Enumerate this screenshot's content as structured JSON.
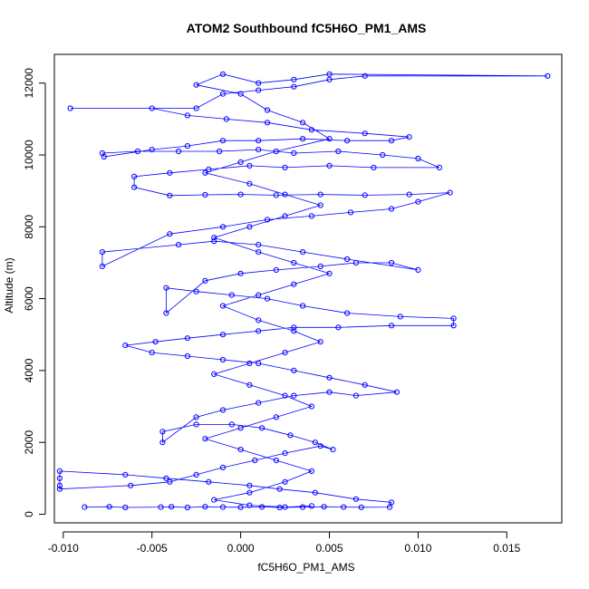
{
  "chart_data": {
    "type": "scatter",
    "title": "ATOM2 Southbound fC5H6O_PM1_AMS",
    "xlabel": "fC5H6O_PM1_AMS",
    "ylabel": "Altitude (m)",
    "xlim": [
      -0.0105,
      0.0181
    ],
    "ylim": [
      -240,
      12800
    ],
    "xticks": [
      -0.01,
      -0.005,
      0.0,
      0.005,
      0.01,
      0.015
    ],
    "xtick_labels": [
      "-0.010",
      "-0.005",
      "0.000",
      "0.005",
      "0.010",
      "0.015"
    ],
    "yticks": [
      0,
      2000,
      4000,
      6000,
      8000,
      10000,
      12000
    ],
    "ytick_labels": [
      "0",
      "2000",
      "4000",
      "6000",
      "8000",
      "10000",
      "12000"
    ],
    "grid": false,
    "marker": "open-circle",
    "connected": true,
    "color": "#0000ff",
    "series": [
      {
        "name": "",
        "points": [
          [
            -0.0088,
            200
          ],
          [
            -0.0074,
            210
          ],
          [
            -0.0065,
            190
          ],
          [
            -0.0045,
            200
          ],
          [
            -0.0039,
            210
          ],
          [
            -0.003,
            190
          ],
          [
            -0.002,
            210
          ],
          [
            -0.001,
            200
          ],
          [
            0.0,
            195
          ],
          [
            0.0012,
            205
          ],
          [
            0.0022,
            190
          ],
          [
            0.0035,
            200
          ],
          [
            0.0047,
            210
          ],
          [
            0.0058,
            200
          ],
          [
            0.0068,
            195
          ],
          [
            0.0084,
            200
          ],
          [
            0.0085,
            330
          ],
          [
            0.0065,
            420
          ],
          [
            0.0042,
            600
          ],
          [
            0.0022,
            700
          ],
          [
            0.0005,
            800
          ],
          [
            -0.0018,
            900
          ],
          [
            -0.0042,
            1000
          ],
          [
            -0.0065,
            1100
          ],
          [
            -0.0102,
            1200
          ],
          [
            -0.0102,
            1000
          ],
          [
            -0.0102,
            800
          ],
          [
            -0.0102,
            700
          ],
          [
            -0.0062,
            800
          ],
          [
            -0.004,
            900
          ],
          [
            -0.0025,
            1100
          ],
          [
            -0.001,
            1300
          ],
          [
            0.0008,
            1500
          ],
          [
            0.0025,
            1700
          ],
          [
            0.0045,
            1900
          ],
          [
            0.0052,
            1800
          ],
          [
            0.0042,
            2000
          ],
          [
            0.0028,
            2200
          ],
          [
            0.0012,
            2400
          ],
          [
            -0.0005,
            2500
          ],
          [
            -0.0025,
            2500
          ],
          [
            -0.0044,
            2300
          ],
          [
            -0.0044,
            2000
          ],
          [
            -0.0025,
            2700
          ],
          [
            -0.001,
            2900
          ],
          [
            0.001,
            3100
          ],
          [
            0.003,
            3300
          ],
          [
            0.005,
            3400
          ],
          [
            0.0065,
            3300
          ],
          [
            0.0088,
            3400
          ],
          [
            0.007,
            3600
          ],
          [
            0.005,
            3800
          ],
          [
            0.003,
            4000
          ],
          [
            0.001,
            4200
          ],
          [
            -0.001,
            4300
          ],
          [
            -0.003,
            4400
          ],
          [
            -0.005,
            4500
          ],
          [
            -0.0065,
            4700
          ],
          [
            -0.0048,
            4800
          ],
          [
            -0.003,
            4900
          ],
          [
            -0.001,
            5000
          ],
          [
            0.001,
            5100
          ],
          [
            0.003,
            5200
          ],
          [
            0.0055,
            5200
          ],
          [
            0.0085,
            5250
          ],
          [
            0.012,
            5250
          ],
          [
            0.012,
            5450
          ],
          [
            0.009,
            5500
          ],
          [
            0.006,
            5600
          ],
          [
            0.0035,
            5800
          ],
          [
            0.0015,
            6000
          ],
          [
            -0.0005,
            6100
          ],
          [
            -0.0025,
            6200
          ],
          [
            -0.0042,
            6300
          ],
          [
            -0.0042,
            5600
          ],
          [
            -0.002,
            6500
          ],
          [
            0.0,
            6700
          ],
          [
            0.002,
            6800
          ],
          [
            0.0045,
            6900
          ],
          [
            0.0065,
            7000
          ],
          [
            0.0085,
            7000
          ],
          [
            0.01,
            6800
          ],
          [
            0.006,
            7100
          ],
          [
            0.0035,
            7300
          ],
          [
            0.001,
            7500
          ],
          [
            -0.0015,
            7600
          ],
          [
            -0.0035,
            7500
          ],
          [
            -0.0078,
            7300
          ],
          [
            -0.0078,
            6900
          ],
          [
            -0.004,
            7800
          ],
          [
            -0.001,
            8000
          ],
          [
            0.0015,
            8200
          ],
          [
            0.004,
            8300
          ],
          [
            0.0062,
            8400
          ],
          [
            0.0085,
            8500
          ],
          [
            0.01,
            8700
          ],
          [
            0.0118,
            8950
          ],
          [
            0.0095,
            8900
          ],
          [
            0.007,
            8880
          ],
          [
            0.0045,
            8900
          ],
          [
            0.002,
            8880
          ],
          [
            0.0,
            8900
          ],
          [
            -0.002,
            8890
          ],
          [
            -0.004,
            8870
          ],
          [
            -0.006,
            9100
          ],
          [
            -0.006,
            9400
          ],
          [
            -0.004,
            9500
          ],
          [
            -0.0018,
            9600
          ],
          [
            0.0005,
            9700
          ],
          [
            0.0025,
            9650
          ],
          [
            0.005,
            9700
          ],
          [
            0.0075,
            9650
          ],
          [
            0.0112,
            9650
          ],
          [
            0.01,
            9900
          ],
          [
            0.008,
            10000
          ],
          [
            0.0055,
            10100
          ],
          [
            0.003,
            10050
          ],
          [
            0.001,
            10150
          ],
          [
            -0.0012,
            10100
          ],
          [
            -0.0035,
            10100
          ],
          [
            -0.0058,
            10100
          ],
          [
            -0.0078,
            10050
          ],
          [
            -0.0077,
            9950
          ],
          [
            -0.005,
            10150
          ],
          [
            -0.003,
            10250
          ],
          [
            -0.001,
            10400
          ],
          [
            0.001,
            10400
          ],
          [
            0.0035,
            10450
          ],
          [
            0.006,
            10400
          ],
          [
            0.0085,
            10400
          ],
          [
            0.0095,
            10500
          ],
          [
            0.007,
            10600
          ],
          [
            0.004,
            10700
          ],
          [
            0.0015,
            10900
          ],
          [
            -0.0008,
            11000
          ],
          [
            -0.003,
            11100
          ],
          [
            -0.005,
            11300
          ],
          [
            -0.0096,
            11300
          ],
          [
            -0.0025,
            11300
          ],
          [
            -0.001,
            11700
          ],
          [
            0.001,
            11800
          ],
          [
            0.003,
            11900
          ],
          [
            0.005,
            12100
          ],
          [
            0.007,
            12200
          ],
          [
            0.0173,
            12200
          ],
          [
            0.005,
            12250
          ],
          [
            0.003,
            12100
          ],
          [
            0.001,
            12000
          ],
          [
            -0.001,
            12250
          ],
          [
            -0.0025,
            11950
          ],
          [
            0.0,
            11700
          ],
          [
            0.0015,
            11250
          ],
          [
            0.0035,
            10900
          ],
          [
            0.005,
            10450
          ],
          [
            0.002,
            10100
          ],
          [
            0.0,
            9800
          ],
          [
            -0.002,
            9500
          ],
          [
            0.0005,
            9200
          ],
          [
            0.0025,
            8900
          ],
          [
            0.0045,
            8600
          ],
          [
            0.0025,
            8300
          ],
          [
            0.0005,
            8000
          ],
          [
            -0.0015,
            7700
          ],
          [
            0.001,
            7300
          ],
          [
            0.003,
            7000
          ],
          [
            0.005,
            6700
          ],
          [
            0.003,
            6400
          ],
          [
            0.001,
            6100
          ],
          [
            -0.001,
            5800
          ],
          [
            0.001,
            5400
          ],
          [
            0.003,
            5100
          ],
          [
            0.0045,
            4800
          ],
          [
            0.0025,
            4500
          ],
          [
            0.0005,
            4200
          ],
          [
            -0.0015,
            3900
          ],
          [
            0.0005,
            3600
          ],
          [
            0.0025,
            3300
          ],
          [
            0.004,
            3000
          ],
          [
            0.002,
            2700
          ],
          [
            0.0,
            2400
          ],
          [
            -0.002,
            2100
          ],
          [
            0.0,
            1800
          ],
          [
            0.002,
            1500
          ],
          [
            0.004,
            1200
          ],
          [
            0.0025,
            900
          ],
          [
            0.0005,
            600
          ],
          [
            -0.0015,
            400
          ],
          [
            0.0005,
            250
          ],
          [
            0.0025,
            200
          ],
          [
            0.004,
            230
          ]
        ]
      }
    ]
  }
}
